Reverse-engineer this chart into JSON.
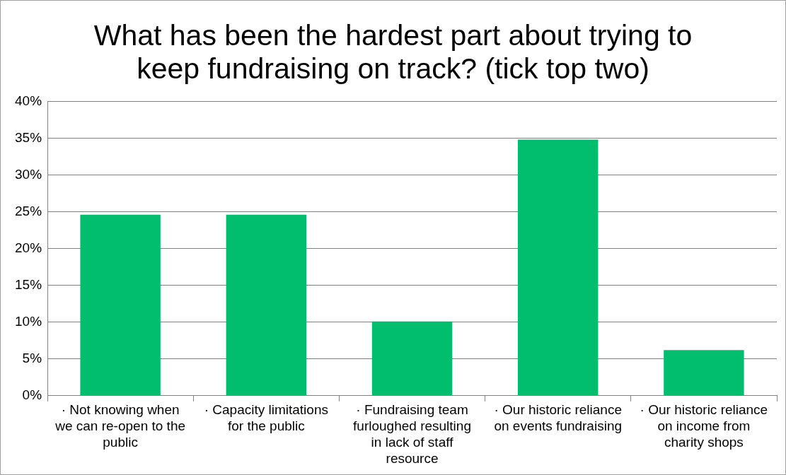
{
  "chart_data": {
    "type": "bar",
    "title": "What has been the hardest part about trying to keep fundraising on track? (tick top two)",
    "categories": [
      "· Not knowing when we can re-open to the public",
      "· Capacity limitations for the public",
      "· Fundraising team furloughed resulting in lack of staff resource",
      "· Our historic reliance on events fundraising",
      "· Our historic reliance on income from charity shops"
    ],
    "values": [
      24.6,
      24.6,
      10.1,
      34.8,
      6.2
    ],
    "color": "#00be6e",
    "ylim": [
      0,
      40
    ],
    "yticks": [
      {
        "value": 0,
        "label": "0%"
      },
      {
        "value": 5,
        "label": "5%"
      },
      {
        "value": 10,
        "label": "10%"
      },
      {
        "value": 15,
        "label": "15%"
      },
      {
        "value": 20,
        "label": "20%"
      },
      {
        "value": 25,
        "label": "25%"
      },
      {
        "value": 30,
        "label": "30%"
      },
      {
        "value": 35,
        "label": "35%"
      },
      {
        "value": 40,
        "label": "40%"
      }
    ],
    "grid": "y",
    "legend": false
  }
}
